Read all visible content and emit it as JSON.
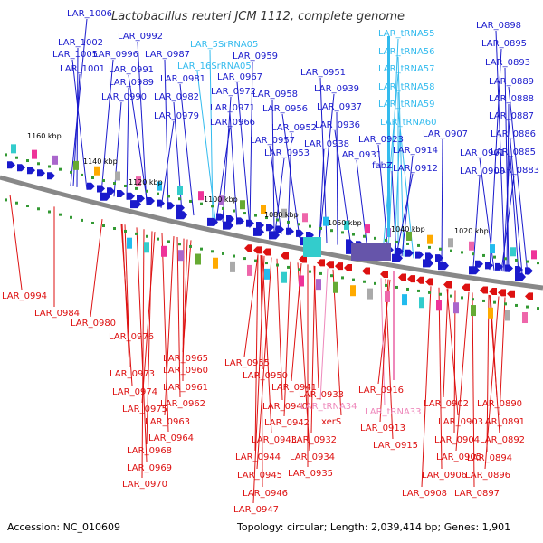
{
  "title": "Lactobacillus reuteri JCM 1112, complete genome",
  "footer": {
    "accession": "Accession: NC_010609",
    "topology": "Topology: circular; Length: 2,039,414 bp; Genes: 1,901"
  },
  "colors": {
    "forward_label": "#1a1acc",
    "reverse_label": "#dd1111",
    "trna_forward": "#33bbee",
    "trna_reverse": "#ee88bb",
    "axis": "#888888"
  },
  "ticks": [
    "1160 kbp",
    "1140 kbp",
    "1120 kbp",
    "1100 kbp",
    "1080 kbp",
    "1060 kbp",
    "1040 kbp",
    "1020 kbp"
  ],
  "top_labels": [
    {
      "text": "LAR_1006",
      "kind": "gene"
    },
    {
      "text": "LAR_1002",
      "kind": "gene"
    },
    {
      "text": "LAR_1005",
      "kind": "gene"
    },
    {
      "text": "LAR_1001",
      "kind": "gene"
    },
    {
      "text": "LAR_0992",
      "kind": "gene"
    },
    {
      "text": "LAR_0996",
      "kind": "gene"
    },
    {
      "text": "LAR_0987",
      "kind": "gene"
    },
    {
      "text": "LAR_0991",
      "kind": "gene"
    },
    {
      "text": "LAR_0989",
      "kind": "gene"
    },
    {
      "text": "LAR_0981",
      "kind": "gene"
    },
    {
      "text": "LAR_0990",
      "kind": "gene"
    },
    {
      "text": "LAR_0982",
      "kind": "gene"
    },
    {
      "text": "LAR_0979",
      "kind": "gene"
    },
    {
      "text": "LAR_5SrRNA05",
      "kind": "rna"
    },
    {
      "text": "LAR_16SrRNA05",
      "kind": "rna"
    },
    {
      "text": "LAR_0959",
      "kind": "gene"
    },
    {
      "text": "LAR_0967",
      "kind": "gene"
    },
    {
      "text": "LAR_0972",
      "kind": "gene"
    },
    {
      "text": "LAR_0971",
      "kind": "gene"
    },
    {
      "text": "LAR_0966",
      "kind": "gene"
    },
    {
      "text": "LAR_0958",
      "kind": "gene"
    },
    {
      "text": "LAR_0956",
      "kind": "gene"
    },
    {
      "text": "LAR_0952",
      "kind": "gene"
    },
    {
      "text": "LAR_0957",
      "kind": "gene"
    },
    {
      "text": "LAR_0953",
      "kind": "gene"
    },
    {
      "text": "LAR_0951",
      "kind": "gene"
    },
    {
      "text": "LAR_0939",
      "kind": "gene"
    },
    {
      "text": "LAR_0937",
      "kind": "gene"
    },
    {
      "text": "LAR_0936",
      "kind": "gene"
    },
    {
      "text": "LAR_0938",
      "kind": "gene"
    },
    {
      "text": "LAR_0931",
      "kind": "gene"
    },
    {
      "text": "LAR_tRNA55",
      "kind": "rna"
    },
    {
      "text": "LAR_tRNA56",
      "kind": "rna"
    },
    {
      "text": "LAR_tRNA57",
      "kind": "rna"
    },
    {
      "text": "LAR_tRNA58",
      "kind": "rna"
    },
    {
      "text": "LAR_tRNA59",
      "kind": "rna"
    },
    {
      "text": "LAR_tRNA60",
      "kind": "rna"
    },
    {
      "text": "LAR_0923",
      "kind": "gene"
    },
    {
      "text": "LAR_0914",
      "kind": "gene"
    },
    {
      "text": "fabZ",
      "kind": "gene"
    },
    {
      "text": "LAR_0912",
      "kind": "gene"
    },
    {
      "text": "LAR_0907",
      "kind": "gene"
    },
    {
      "text": "LAR_0901",
      "kind": "gene"
    },
    {
      "text": "LAR_0900",
      "kind": "gene"
    },
    {
      "text": "LAR_0898",
      "kind": "gene"
    },
    {
      "text": "LAR_0895",
      "kind": "gene"
    },
    {
      "text": "LAR_0893",
      "kind": "gene"
    },
    {
      "text": "LAR_0889",
      "kind": "gene"
    },
    {
      "text": "LAR_0888",
      "kind": "gene"
    },
    {
      "text": "LAR_0887",
      "kind": "gene"
    },
    {
      "text": "LAR_0886",
      "kind": "gene"
    },
    {
      "text": "LAR_0885",
      "kind": "gene"
    },
    {
      "text": "LAR_0883",
      "kind": "gene"
    }
  ],
  "bottom_labels": [
    {
      "text": "LAR_0994",
      "kind": "gene"
    },
    {
      "text": "LAR_0984",
      "kind": "gene"
    },
    {
      "text": "LAR_0980",
      "kind": "gene"
    },
    {
      "text": "LAR_0976",
      "kind": "gene"
    },
    {
      "text": "LAR_0965",
      "kind": "gene"
    },
    {
      "text": "LAR_0973",
      "kind": "gene"
    },
    {
      "text": "LAR_0960",
      "kind": "gene"
    },
    {
      "text": "LAR_0974",
      "kind": "gene"
    },
    {
      "text": "LAR_0961",
      "kind": "gene"
    },
    {
      "text": "LAR_0975",
      "kind": "gene"
    },
    {
      "text": "LAR_0962",
      "kind": "gene"
    },
    {
      "text": "LAR_0963",
      "kind": "gene"
    },
    {
      "text": "LAR_0964",
      "kind": "gene"
    },
    {
      "text": "LAR_0968",
      "kind": "gene"
    },
    {
      "text": "LAR_0969",
      "kind": "gene"
    },
    {
      "text": "LAR_0970",
      "kind": "gene"
    },
    {
      "text": "LAR_0955",
      "kind": "gene"
    },
    {
      "text": "LAR_0950",
      "kind": "gene"
    },
    {
      "text": "LAR_0941",
      "kind": "gene"
    },
    {
      "text": "LAR_0940",
      "kind": "gene"
    },
    {
      "text": "LAR_0942",
      "kind": "gene"
    },
    {
      "text": "LAR_0943",
      "kind": "gene"
    },
    {
      "text": "LAR_0944",
      "kind": "gene"
    },
    {
      "text": "LAR_0945",
      "kind": "gene"
    },
    {
      "text": "LAR_0946",
      "kind": "gene"
    },
    {
      "text": "LAR_0947",
      "kind": "gene"
    },
    {
      "text": "LAR_0933",
      "kind": "gene"
    },
    {
      "text": "LAR_tRNA34",
      "kind": "rna"
    },
    {
      "text": "xerS",
      "kind": "gene"
    },
    {
      "text": "LAR_0932",
      "kind": "gene"
    },
    {
      "text": "LAR_0934",
      "kind": "gene"
    },
    {
      "text": "LAR_0935",
      "kind": "gene"
    },
    {
      "text": "LAR_0916",
      "kind": "gene"
    },
    {
      "text": "LAR_tRNA33",
      "kind": "rna"
    },
    {
      "text": "LAR_0913",
      "kind": "gene"
    },
    {
      "text": "LAR_0915",
      "kind": "gene"
    },
    {
      "text": "LAR_0902",
      "kind": "gene"
    },
    {
      "text": "LAR_0903",
      "kind": "gene"
    },
    {
      "text": "LAR_0904",
      "kind": "gene"
    },
    {
      "text": "LAR_0905",
      "kind": "gene"
    },
    {
      "text": "LAR_0906",
      "kind": "gene"
    },
    {
      "text": "LAR_0908",
      "kind": "gene"
    },
    {
      "text": "LAR_0890",
      "kind": "gene"
    },
    {
      "text": "LAR_0891",
      "kind": "gene"
    },
    {
      "text": "LAR_0892",
      "kind": "gene"
    },
    {
      "text": "LAR_0894",
      "kind": "gene"
    },
    {
      "text": "LAR_0896",
      "kind": "gene"
    },
    {
      "text": "LAR_0897",
      "kind": "gene"
    }
  ]
}
